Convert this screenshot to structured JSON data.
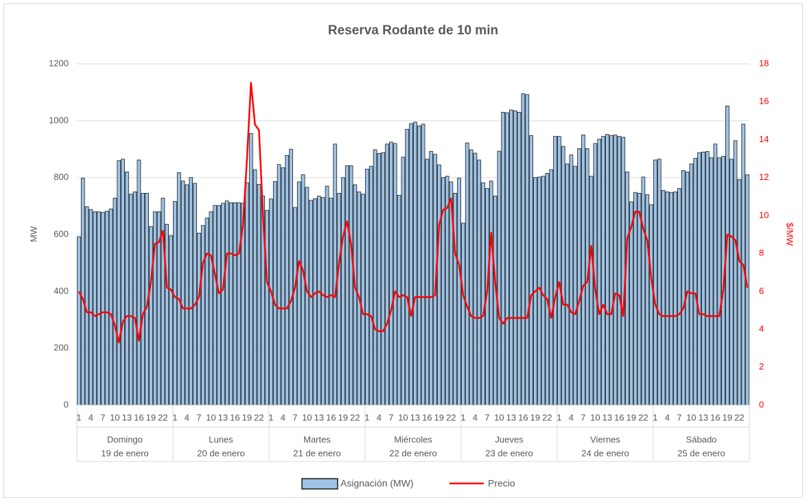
{
  "chart_data": {
    "type": "bar-line",
    "title": "Reserva Rodante de 10 min",
    "ylabel": "MW",
    "y2label": "$/MW",
    "ylim": [
      0,
      1200
    ],
    "yticks": [
      0,
      200,
      400,
      600,
      800,
      1000,
      1200
    ],
    "y2lim": [
      0,
      18
    ],
    "y2ticks": [
      0,
      2,
      4,
      6,
      8,
      10,
      12,
      14,
      16,
      18
    ],
    "grid": true,
    "legend": "bottom",
    "groups": [
      {
        "day": "Domingo",
        "date": "19 de enero"
      },
      {
        "day": "Lunes",
        "date": "20 de enero"
      },
      {
        "day": "Martes",
        "date": "21 de enero"
      },
      {
        "day": "Miércoles",
        "date": "22 de enero"
      },
      {
        "day": "Jueves",
        "date": "23 de enero"
      },
      {
        "day": "Viernes",
        "date": "24 de enero"
      },
      {
        "day": "Sábado",
        "date": "25 de enero"
      }
    ],
    "categories": [
      "1",
      null,
      null,
      "4",
      null,
      null,
      "7",
      null,
      null,
      "10",
      null,
      null,
      "13",
      null,
      null,
      "16",
      null,
      null,
      "19",
      null,
      null,
      "22",
      null,
      null,
      "1",
      null,
      null,
      "4",
      null,
      null,
      "7",
      null,
      null,
      "10",
      null,
      null,
      "13",
      null,
      null,
      "16",
      null,
      null,
      "19",
      null,
      null,
      "22",
      null,
      null,
      "1",
      null,
      null,
      "4",
      null,
      null,
      "7",
      null,
      null,
      "10",
      null,
      null,
      "13",
      null,
      null,
      "16",
      null,
      null,
      "19",
      null,
      null,
      "22",
      null,
      null,
      "1",
      null,
      null,
      "4",
      null,
      null,
      "7",
      null,
      null,
      "10",
      null,
      null,
      "13",
      null,
      null,
      "16",
      null,
      null,
      "19",
      null,
      null,
      "22",
      null,
      null,
      "1",
      null,
      null,
      "4",
      null,
      null,
      "7",
      null,
      null,
      "10",
      null,
      null,
      "13",
      null,
      null,
      "16",
      null,
      null,
      "19",
      null,
      null,
      "22",
      null,
      null,
      "1",
      null,
      null,
      "4",
      null,
      null,
      "7",
      null,
      null,
      "10",
      null,
      null,
      "13",
      null,
      null,
      "16",
      null,
      null,
      "19",
      null,
      null,
      "22",
      null,
      null,
      "1",
      null,
      null,
      "4",
      null,
      null,
      "7",
      null,
      null,
      "10",
      null,
      null,
      "13",
      null,
      null,
      "16",
      null,
      null,
      "19",
      null,
      null,
      "22",
      null,
      null
    ],
    "series": [
      {
        "name": "Asignación (MW)",
        "type": "bar",
        "color": "#9dc3e6",
        "values": [
          592,
          798,
          698,
          688,
          680,
          680,
          678,
          682,
          690,
          728,
          860,
          865,
          820,
          742,
          750,
          862,
          745,
          745,
          628,
          680,
          680,
          728,
          636,
          596,
          716,
          818,
          788,
          775,
          800,
          780,
          605,
          632,
          658,
          680,
          702,
          702,
          710,
          718,
          712,
          712,
          712,
          710,
          782,
          955,
          828,
          776,
          736,
          685,
          725,
          786,
          846,
          835,
          878,
          900,
          695,
          785,
          810,
          766,
          720,
          726,
          735,
          730,
          770,
          728,
          918,
          745,
          800,
          842,
          842,
          775,
          750,
          742,
          830,
          840,
          898,
          885,
          888,
          918,
          925,
          920,
          738,
          872,
          970,
          990,
          995,
          982,
          988,
          865,
          892,
          882,
          845,
          800,
          805,
          785,
          745,
          798,
          640,
          922,
          898,
          886,
          862,
          782,
          762,
          788,
          735,
          893,
          1030,
          1028,
          1038,
          1035,
          1030,
          1095,
          1092,
          948,
          800,
          802,
          805,
          815,
          828,
          945,
          945,
          910,
          848,
          880,
          840,
          902,
          950,
          902,
          805,
          920,
          935,
          945,
          952,
          948,
          950,
          945,
          942,
          820,
          715,
          748,
          745,
          802,
          740,
          705,
          862,
          865,
          755,
          750,
          748,
          750,
          762,
          825,
          820,
          848,
          868,
          888,
          890,
          892,
          870,
          918,
          870,
          875,
          1052,
          865,
          930,
          793,
          988,
          810
        ]
      },
      {
        "name": "Precio",
        "type": "line",
        "axis": "y2",
        "color": "#ff0000",
        "values": [
          6.0,
          5.6,
          4.9,
          4.9,
          4.7,
          4.8,
          4.9,
          4.9,
          4.8,
          4.2,
          3.3,
          4.4,
          4.7,
          4.7,
          4.6,
          3.4,
          4.8,
          5.2,
          6.5,
          8.5,
          8.6,
          9.2,
          6.2,
          6.1,
          5.7,
          5.6,
          5.1,
          5.1,
          5.1,
          5.3,
          5.7,
          7.5,
          8.0,
          7.9,
          6.9,
          5.9,
          6.1,
          8.0,
          8.0,
          7.9,
          8.0,
          9.5,
          13.0,
          17.0,
          14.8,
          14.5,
          10.0,
          6.5,
          6.0,
          5.3,
          5.1,
          5.1,
          5.1,
          5.5,
          6.2,
          7.6,
          7.1,
          6.0,
          5.7,
          5.9,
          6.0,
          5.8,
          5.7,
          5.8,
          5.7,
          7.5,
          8.9,
          9.7,
          8.5,
          6.2,
          5.7,
          4.8,
          4.8,
          4.7,
          4.0,
          3.9,
          3.9,
          4.3,
          5.0,
          6.0,
          5.7,
          5.8,
          5.7,
          4.7,
          5.7,
          5.7,
          5.7,
          5.7,
          5.7,
          5.8,
          9.5,
          10.3,
          10.4,
          10.9,
          8.0,
          7.4,
          5.8,
          5.2,
          4.7,
          4.6,
          4.6,
          4.7,
          6.0,
          9.1,
          6.5,
          4.6,
          4.3,
          4.6,
          4.6,
          4.6,
          4.6,
          4.6,
          4.6,
          5.8,
          6.0,
          6.2,
          5.8,
          5.6,
          4.6,
          5.7,
          6.5,
          5.3,
          5.3,
          4.9,
          4.8,
          5.5,
          6.3,
          6.5,
          8.4,
          6.1,
          4.8,
          5.3,
          4.8,
          4.8,
          5.9,
          5.8,
          4.7,
          8.8,
          9.4,
          10.2,
          10.2,
          9.3,
          8.7,
          6.7,
          5.3,
          4.8,
          4.7,
          4.7,
          4.7,
          4.7,
          4.8,
          5.1,
          6.0,
          5.9,
          5.9,
          4.8,
          4.8,
          4.7,
          4.7,
          4.7,
          4.7,
          6.1,
          9.0,
          8.9,
          8.7,
          7.6,
          7.4,
          6.2
        ]
      }
    ]
  }
}
